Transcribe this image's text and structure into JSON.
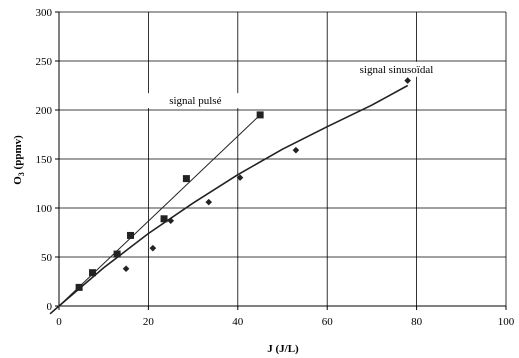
{
  "chart_data": {
    "type": "scatter",
    "xlabel": "J (J/L)",
    "ylabel_main": "O",
    "ylabel_sub": "3",
    "ylabel_rest": " (ppmv)",
    "xlim": [
      0,
      100
    ],
    "ylim": [
      0,
      300
    ],
    "x_ticks": [
      "0",
      "20",
      "40",
      "60",
      "80",
      "100"
    ],
    "y_ticks": [
      "0",
      "50",
      "100",
      "150",
      "200",
      "250",
      "300"
    ],
    "grid": true,
    "series": [
      {
        "name": "signal pulsé",
        "marker": "square",
        "color": "#222222",
        "points": [
          {
            "x": 4.5,
            "y": 19
          },
          {
            "x": 7.5,
            "y": 34
          },
          {
            "x": 13,
            "y": 53
          },
          {
            "x": 16,
            "y": 72
          },
          {
            "x": 23.5,
            "y": 89
          },
          {
            "x": 28.5,
            "y": 130
          },
          {
            "x": 45,
            "y": 195
          }
        ],
        "fit": {
          "x": [
            0,
            45
          ],
          "y": [
            0,
            195
          ]
        }
      },
      {
        "name": "signal sinusoïdal",
        "marker": "diamond",
        "color": "#222222",
        "points": [
          {
            "x": 15,
            "y": 38
          },
          {
            "x": 21,
            "y": 59
          },
          {
            "x": 25,
            "y": 87
          },
          {
            "x": 33.5,
            "y": 106
          },
          {
            "x": 40.5,
            "y": 131
          },
          {
            "x": 53,
            "y": 159
          },
          {
            "x": 78,
            "y": 230
          }
        ],
        "fit_points": [
          {
            "x": -2,
            "y": -8
          },
          {
            "x": 0,
            "y": 0
          },
          {
            "x": 10,
            "y": 39
          },
          {
            "x": 20,
            "y": 74
          },
          {
            "x": 30,
            "y": 105
          },
          {
            "x": 40,
            "y": 134
          },
          {
            "x": 50,
            "y": 160
          },
          {
            "x": 60,
            "y": 183
          },
          {
            "x": 70,
            "y": 205
          },
          {
            "x": 78,
            "y": 225
          }
        ]
      }
    ],
    "annotations": [
      {
        "label": "signal pulsé",
        "series": 0,
        "x": 30.5,
        "y": 206
      },
      {
        "label": "signal sinusoïdal",
        "series": 1,
        "x": 75.5,
        "y": 238
      }
    ]
  }
}
